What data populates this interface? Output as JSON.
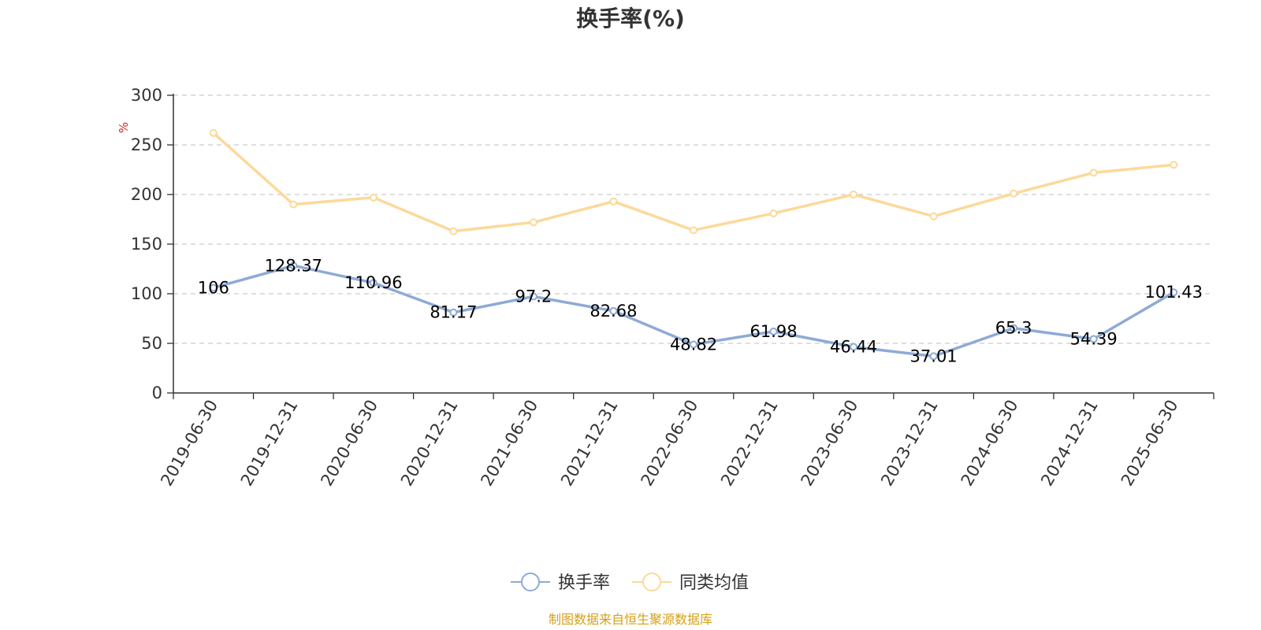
{
  "chart_data": {
    "type": "line",
    "title": "换手率(%)",
    "ylabel": "%",
    "xlabel": "",
    "ylim": [
      0,
      300
    ],
    "yticks": [
      0,
      50,
      100,
      150,
      200,
      250,
      300
    ],
    "grid": true,
    "legend_position": "bottom",
    "categories": [
      "2019-06-30",
      "2019-12-31",
      "2020-06-30",
      "2020-12-31",
      "2021-06-30",
      "2021-12-31",
      "2022-06-30",
      "2022-12-31",
      "2023-06-30",
      "2023-12-31",
      "2024-06-30",
      "2024-12-31",
      "2025-06-30"
    ],
    "series": [
      {
        "name": "换手率",
        "color": "#8eaad6",
        "show_labels": true,
        "values": [
          106,
          128.37,
          110.96,
          81.17,
          97.2,
          82.68,
          48.82,
          61.98,
          46.44,
          37.01,
          65.3,
          54.39,
          101.43
        ]
      },
      {
        "name": "同类均值",
        "color": "#fcd99a",
        "show_labels": false,
        "values": [
          262,
          190,
          197,
          163,
          172,
          193,
          164,
          181,
          200,
          178,
          201,
          222,
          230
        ]
      }
    ],
    "source": "制图数据来自恒生聚源数据库",
    "colors": {
      "unit_label": "#e02020",
      "source_text": "#d4a017",
      "grid": "#cccccc",
      "axis": "#333333"
    }
  }
}
